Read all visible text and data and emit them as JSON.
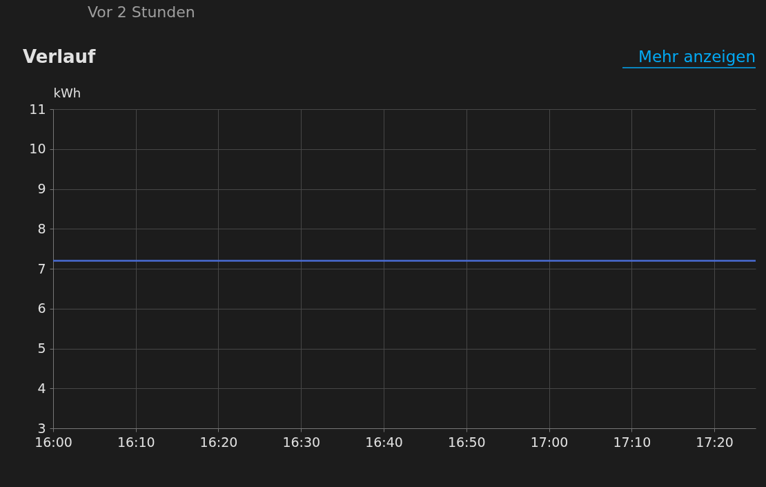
{
  "chart_data": {
    "type": "line",
    "title": "Verlauf",
    "ylabel": "kWh",
    "annotations": [
      "Vor 2 Stunden",
      "Mehr anzeigen"
    ],
    "x": [
      16.0,
      17.4167
    ],
    "series": [
      {
        "color": "#4a6cd4",
        "values": [
          7.2,
          7.2
        ]
      }
    ],
    "xlim": [
      16.0,
      17.4167
    ],
    "xticks": [
      {
        "value": 16.0,
        "label": "16:00"
      },
      {
        "value": 16.1667,
        "label": "16:10"
      },
      {
        "value": 16.3333,
        "label": "16:20"
      },
      {
        "value": 16.5,
        "label": "16:30"
      },
      {
        "value": 16.6667,
        "label": "16:40"
      },
      {
        "value": 16.8333,
        "label": "16:50"
      },
      {
        "value": 17.0,
        "label": "17:00"
      },
      {
        "value": 17.1667,
        "label": "17:10"
      },
      {
        "value": 17.3333,
        "label": "17:20"
      }
    ],
    "ylim": [
      3,
      11
    ],
    "yticks": [
      3,
      4,
      5,
      6,
      7,
      8,
      9,
      10,
      11
    ],
    "grid": true,
    "marker": "none",
    "line_style": "solid",
    "legend": false
  }
}
